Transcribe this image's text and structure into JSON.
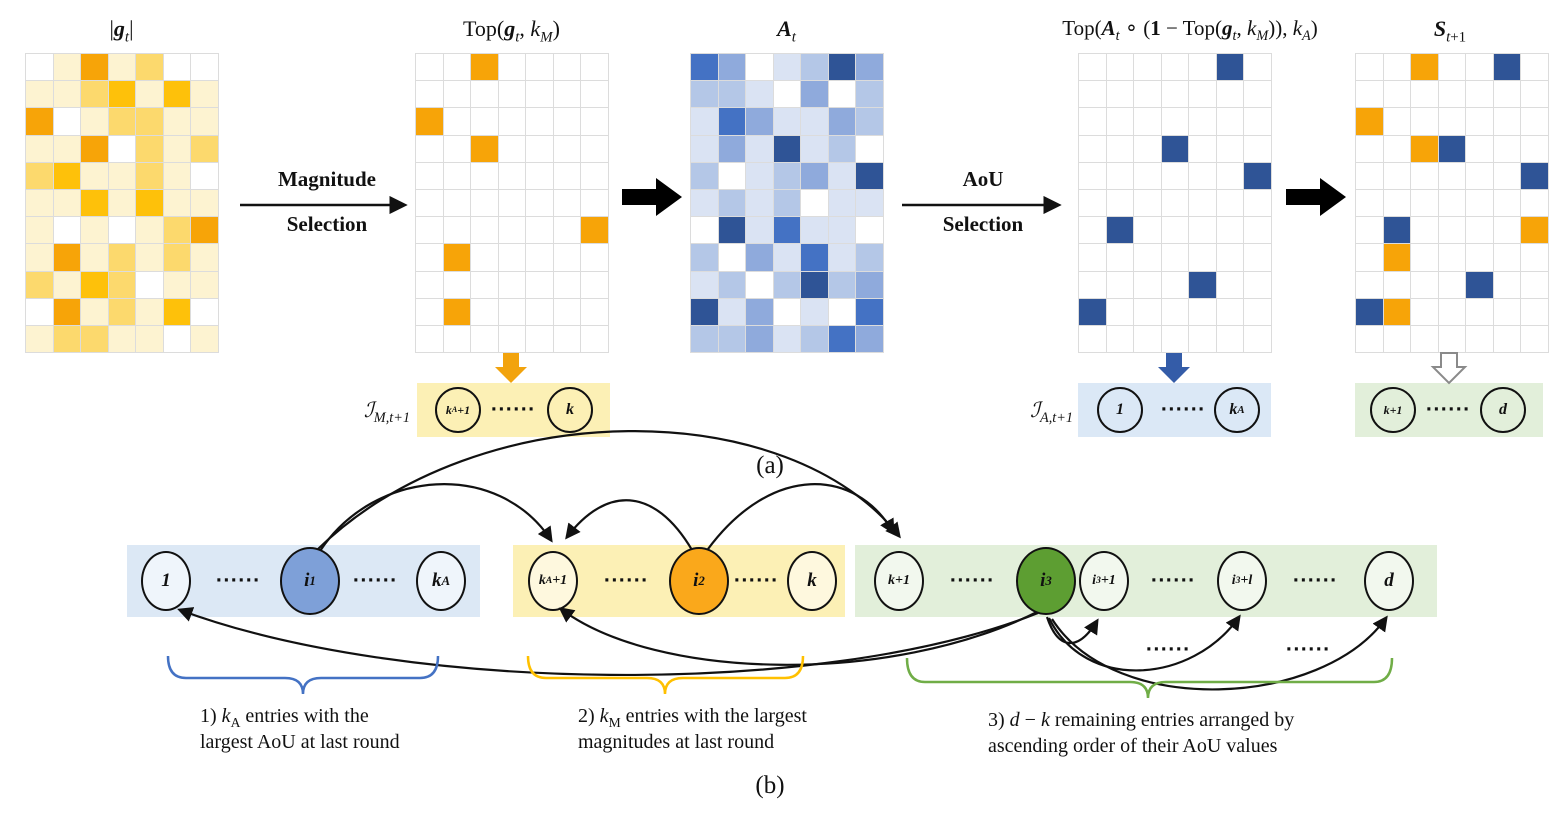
{
  "colors": {
    "orange": "#f7a508",
    "gold": "#ffc103",
    "royal_blue": "#4472c4",
    "dark_navy": "#2f5496",
    "band_blue": "#dce8f5",
    "band_yellow": "#fcf0b5",
    "band_green": "#e2efda",
    "brace_blue": "#4472c4",
    "brace_gold": "#ffc000",
    "brace_green": "#70ad47",
    "node_i1_fill": "#7ea0d8",
    "node_i2_fill": "#faa81b",
    "node_i3_fill": "#5d9e32",
    "down_arrow_orange": "#f2a30d",
    "down_arrow_blue": "#345ca8",
    "palettes": {
      "yellow": {
        "0": "#ffffff",
        "1": "#fdf3d1",
        "2": "#fcd96d",
        "3": "#fec10a",
        "4": "#f7a408"
      },
      "blue": {
        "0": "#ffffff",
        "1": "#dae3f3",
        "2": "#b4c7e7",
        "3": "#8faadc",
        "4": "#4472c4",
        "5": "#2f5496"
      },
      "sparse": {
        ".": "#ffffff",
        "O": "#f7a408",
        "B": "#2f5496"
      }
    }
  },
  "part_a": {
    "grids": [
      {
        "name": "gradient-magnitude",
        "title_html": "|<b><i>g</i></b><sub><i>t</i></sub>|",
        "palette": "yellow",
        "cols": 7,
        "rows": 11,
        "cells": [
          [
            "0",
            "1",
            "4",
            "1",
            "2",
            "0",
            "0"
          ],
          [
            "1",
            "1",
            "2",
            "3",
            "1",
            "3",
            "1"
          ],
          [
            "4",
            "0",
            "1",
            "2",
            "2",
            "1",
            "1"
          ],
          [
            "1",
            "1",
            "4",
            "0",
            "2",
            "1",
            "2"
          ],
          [
            "2",
            "3",
            "1",
            "1",
            "2",
            "1",
            "0"
          ],
          [
            "1",
            "1",
            "3",
            "1",
            "3",
            "1",
            "1"
          ],
          [
            "1",
            "0",
            "1",
            "0",
            "1",
            "2",
            "4"
          ],
          [
            "1",
            "4",
            "1",
            "2",
            "1",
            "2",
            "1"
          ],
          [
            "2",
            "1",
            "3",
            "2",
            "0",
            "1",
            "1"
          ],
          [
            "0",
            "4",
            "1",
            "2",
            "1",
            "3",
            "0"
          ],
          [
            "1",
            "2",
            "2",
            "1",
            "1",
            "0",
            "1"
          ]
        ]
      },
      {
        "name": "top-magnitude-mask",
        "title_html": "Top(<b><i>g</i></b><sub><i>t</i></sub>, <i>k</i><sub><i>M</i></sub>)",
        "palette": "sparse",
        "cols": 7,
        "rows": 11,
        "cells": [
          [
            ".",
            ".",
            "O",
            ".",
            ".",
            ".",
            "."
          ],
          [
            ".",
            ".",
            ".",
            ".",
            ".",
            ".",
            "."
          ],
          [
            "O",
            ".",
            ".",
            ".",
            ".",
            ".",
            "."
          ],
          [
            ".",
            ".",
            "O",
            ".",
            ".",
            ".",
            "."
          ],
          [
            ".",
            ".",
            ".",
            ".",
            ".",
            ".",
            "."
          ],
          [
            ".",
            ".",
            ".",
            ".",
            ".",
            ".",
            "."
          ],
          [
            ".",
            ".",
            ".",
            ".",
            ".",
            ".",
            "O"
          ],
          [
            ".",
            "O",
            ".",
            ".",
            ".",
            ".",
            "."
          ],
          [
            ".",
            ".",
            ".",
            ".",
            ".",
            ".",
            "."
          ],
          [
            ".",
            "O",
            ".",
            ".",
            ".",
            ".",
            "."
          ],
          [
            ".",
            ".",
            ".",
            ".",
            ".",
            ".",
            "."
          ]
        ]
      },
      {
        "name": "aou-matrix",
        "title_html": "<b><i>A</i></b><sub><i>t</i></sub>",
        "palette": "blue",
        "cols": 7,
        "rows": 11,
        "cells": [
          [
            "4",
            "3",
            "0",
            "1",
            "2",
            "5",
            "3"
          ],
          [
            "2",
            "2",
            "1",
            "0",
            "3",
            "0",
            "2"
          ],
          [
            "1",
            "4",
            "3",
            "1",
            "1",
            "3",
            "2"
          ],
          [
            "1",
            "3",
            "1",
            "5",
            "1",
            "2",
            "0"
          ],
          [
            "2",
            "0",
            "1",
            "2",
            "3",
            "1",
            "5"
          ],
          [
            "1",
            "2",
            "1",
            "2",
            "0",
            "1",
            "1"
          ],
          [
            "0",
            "5",
            "1",
            "4",
            "1",
            "1",
            "0"
          ],
          [
            "2",
            "0",
            "3",
            "1",
            "4",
            "1",
            "2"
          ],
          [
            "1",
            "2",
            "0",
            "2",
            "5",
            "2",
            "3"
          ],
          [
            "5",
            "1",
            "3",
            "0",
            "1",
            "0",
            "4"
          ],
          [
            "2",
            "2",
            "3",
            "1",
            "2",
            "4",
            "3"
          ]
        ]
      },
      {
        "name": "top-aou-mask",
        "title_html": "Top(<b><i>A</i></b><sub><i>t</i></sub> ∘ (<b>1</b> − Top(<b><i>g</i></b><sub><i>t</i></sub>, <i>k</i><sub><i>M</i></sub>)), <i>k</i><sub><i>A</i></sub>)",
        "palette": "sparse",
        "cols": 7,
        "rows": 11,
        "cells": [
          [
            ".",
            ".",
            ".",
            ".",
            ".",
            "B",
            "."
          ],
          [
            ".",
            ".",
            ".",
            ".",
            ".",
            ".",
            "."
          ],
          [
            ".",
            ".",
            ".",
            ".",
            ".",
            ".",
            "."
          ],
          [
            ".",
            ".",
            ".",
            "B",
            ".",
            ".",
            "."
          ],
          [
            ".",
            ".",
            ".",
            ".",
            ".",
            ".",
            "B"
          ],
          [
            ".",
            ".",
            ".",
            ".",
            ".",
            ".",
            "."
          ],
          [
            ".",
            "B",
            ".",
            ".",
            ".",
            ".",
            "."
          ],
          [
            ".",
            ".",
            ".",
            ".",
            ".",
            ".",
            "."
          ],
          [
            ".",
            ".",
            ".",
            ".",
            "B",
            ".",
            "."
          ],
          [
            "B",
            ".",
            ".",
            ".",
            ".",
            ".",
            "."
          ],
          [
            ".",
            ".",
            ".",
            ".",
            ".",
            ".",
            "."
          ]
        ]
      },
      {
        "name": "next-mask",
        "title_html": "<b><i>S</i></b><sub><i>t</i>+1</sub>",
        "palette": "sparse",
        "cols": 7,
        "rows": 11,
        "cells": [
          [
            ".",
            ".",
            "O",
            ".",
            ".",
            "B",
            "."
          ],
          [
            ".",
            ".",
            ".",
            ".",
            ".",
            ".",
            "."
          ],
          [
            "O",
            ".",
            ".",
            ".",
            ".",
            ".",
            "."
          ],
          [
            ".",
            ".",
            "O",
            "B",
            ".",
            ".",
            "."
          ],
          [
            ".",
            ".",
            ".",
            ".",
            ".",
            ".",
            "B"
          ],
          [
            ".",
            ".",
            ".",
            ".",
            ".",
            ".",
            "."
          ],
          [
            ".",
            "B",
            ".",
            ".",
            ".",
            ".",
            "O"
          ],
          [
            ".",
            "O",
            ".",
            ".",
            ".",
            ".",
            "."
          ],
          [
            ".",
            ".",
            ".",
            ".",
            "B",
            ".",
            "."
          ],
          [
            "B",
            "O",
            ".",
            ".",
            ".",
            ".",
            "."
          ],
          [
            ".",
            ".",
            ".",
            ".",
            ".",
            ".",
            "."
          ]
        ]
      }
    ],
    "arrow1": {
      "line1": "Magnitude",
      "line2": "Selection"
    },
    "arrow2": {
      "line1": "AoU",
      "line2": "Selection"
    },
    "index_boxes": [
      {
        "name": "magnitude-index-set",
        "label_html": "ℐ<sub><i>M</i>,<i>t</i>+1</sub>",
        "bg": "#fcf0b5",
        "items": [
          {
            "kind": "circle",
            "name": "node-kA-plus-1",
            "label_html": "<i>k</i><sub>A</sub>+1",
            "small": true
          },
          {
            "kind": "dots",
            "text": "······"
          },
          {
            "kind": "circle",
            "name": "node-k",
            "label_html": "<i>k</i>"
          }
        ]
      },
      {
        "name": "aou-index-set",
        "label_html": "ℐ<sub><i>A</i>,<i>t</i>+1</sub>",
        "bg": "#dbe8f6",
        "items": [
          {
            "kind": "circle",
            "name": "node-1",
            "label_html": "1"
          },
          {
            "kind": "dots",
            "text": "······"
          },
          {
            "kind": "circle",
            "name": "node-kA",
            "label_html": "<i>k</i><sub>A</sub>"
          }
        ]
      },
      {
        "name": "remaining-index-set",
        "label_html": "",
        "bg": "#e2efda",
        "items": [
          {
            "kind": "circle",
            "name": "node-k-plus-1",
            "label_html": "<i>k</i>+1",
            "small": true
          },
          {
            "kind": "dots",
            "text": "······"
          },
          {
            "kind": "circle",
            "name": "node-d",
            "label_html": "<i>d</i>"
          }
        ]
      }
    ],
    "caption": "(a)"
  },
  "part_b": {
    "bands": [
      {
        "name": "aou-band",
        "bg": "#dce8f5",
        "items": [
          {
            "kind": "circle",
            "name": "node-1",
            "label_html": "1"
          },
          {
            "kind": "dots",
            "text": "······"
          },
          {
            "kind": "circle",
            "name": "node-i1",
            "label_html": "<i>i</i><sub>1</sub>",
            "fill": "#7ea0d8"
          },
          {
            "kind": "dots",
            "text": "······"
          },
          {
            "kind": "circle",
            "name": "node-kA",
            "label_html": "<i>k</i><sub>A</sub>"
          }
        ]
      },
      {
        "name": "magnitude-band",
        "bg": "#fcf0b5",
        "items": [
          {
            "kind": "circle",
            "name": "node-kA-plus-1",
            "label_html": "<i>k</i><sub>A</sub>+1",
            "small": true
          },
          {
            "kind": "dots",
            "text": "······"
          },
          {
            "kind": "circle",
            "name": "node-i2",
            "label_html": "<i>i</i><sub>2</sub>",
            "fill": "#faa81b"
          },
          {
            "kind": "dots",
            "text": "······"
          },
          {
            "kind": "circle",
            "name": "node-k",
            "label_html": "<i>k</i>"
          }
        ]
      },
      {
        "name": "remaining-band",
        "bg": "#e2efda",
        "items": [
          {
            "kind": "circle",
            "name": "node-k-plus-1",
            "label_html": "<i>k</i>+1",
            "small": true
          },
          {
            "kind": "dots",
            "text": "······"
          },
          {
            "kind": "circle",
            "name": "node-i3",
            "label_html": "<i>i</i><sub>3</sub>",
            "fill": "#5d9e32"
          },
          {
            "kind": "circle",
            "name": "node-i3-plus-1",
            "label_html": "<i>i</i><sub>3</sub>+1",
            "small": true
          },
          {
            "kind": "dots",
            "text": "······"
          },
          {
            "kind": "circle",
            "name": "node-i3-plus-l",
            "label_html": "<i>i</i><sub>3</sub>+<i>l</i>",
            "small": true
          },
          {
            "kind": "dots",
            "text": "······"
          },
          {
            "kind": "circle",
            "name": "node-d",
            "label_html": "<i>d</i>"
          }
        ]
      }
    ],
    "under_dots": "······",
    "captions": [
      {
        "html": "1) <i>k</i><sub>A</sub> entries with the<br>largest AoU at last round"
      },
      {
        "html": "2) <i>k</i><sub>M</sub> entries with the largest<br>magnitudes at last round"
      },
      {
        "html": "3) <i>d</i> − <i>k</i> remaining entries arranged by<br>ascending order of their AoU values"
      }
    ],
    "caption": "(b)"
  }
}
